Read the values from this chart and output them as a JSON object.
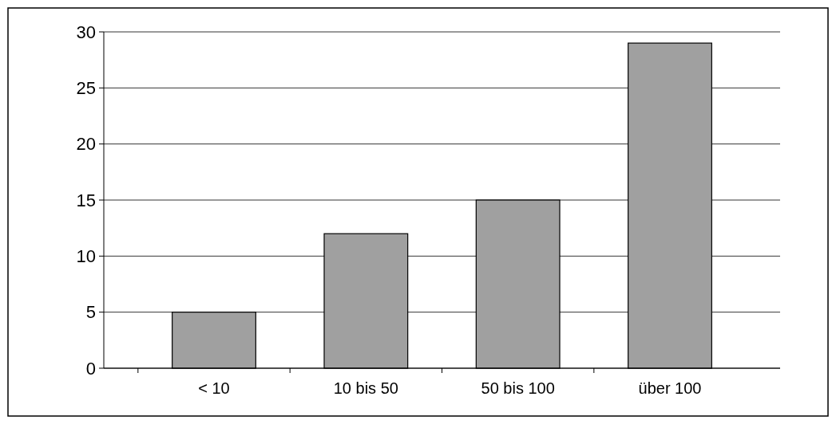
{
  "chart_data": {
    "type": "bar",
    "categories": [
      "< 10",
      "10 bis 50",
      "50 bis 100",
      "über 100"
    ],
    "values": [
      5,
      12,
      15,
      29
    ],
    "color": "#a0a0a0",
    "ylim": [
      0,
      30
    ],
    "yticks": [
      0,
      5,
      10,
      15,
      20,
      25,
      30
    ],
    "grid": "y"
  }
}
